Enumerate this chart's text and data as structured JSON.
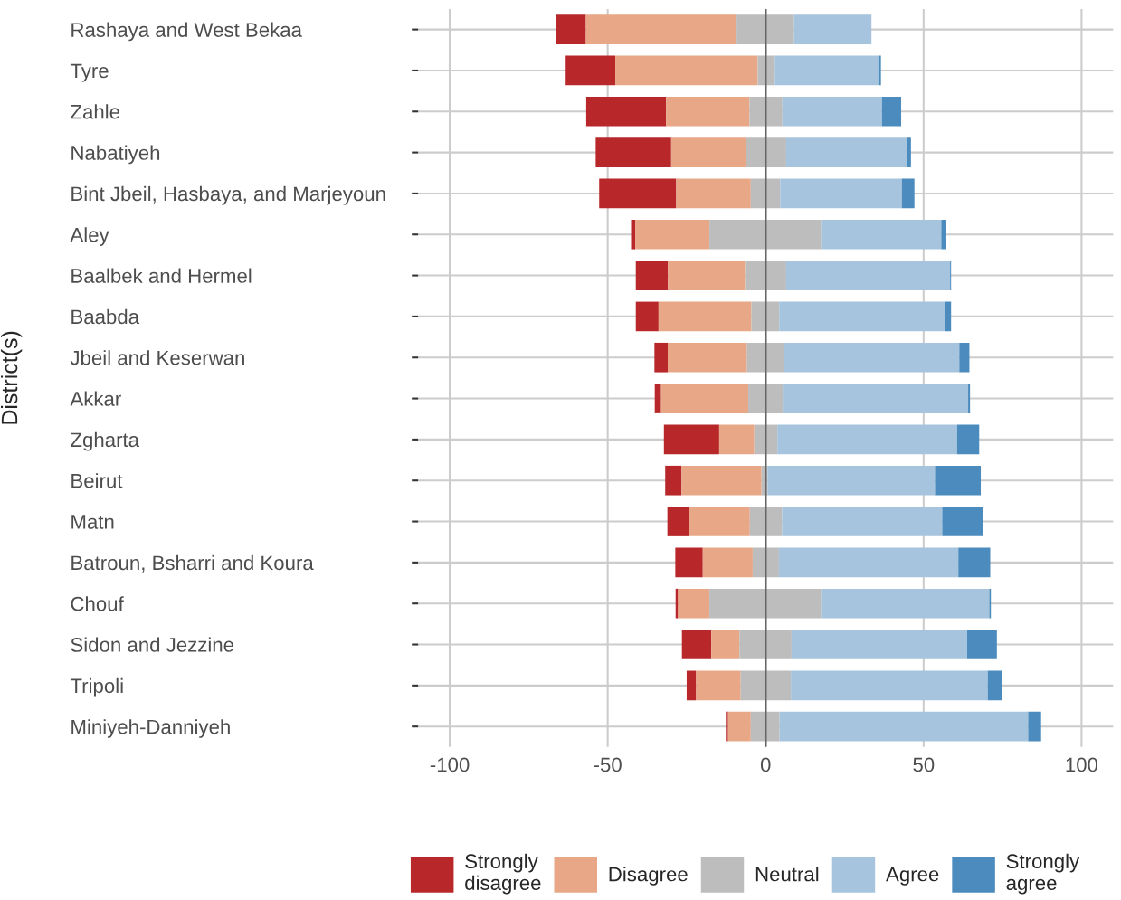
{
  "chart_data": {
    "type": "bar",
    "orientation": "horizontal",
    "ylabel": "District(s)",
    "categories": [
      "Rashaya and West Bekaa",
      "Tyre",
      "Zahle",
      "Nabatiyeh",
      "Bint Jbeil, Hasbaya, and Marjeyoun",
      "Aley",
      "Baalbek and Hermel",
      "Baabda",
      "Jbeil and Keserwan",
      "Akkar",
      "Zgharta",
      "Beirut",
      "Matn",
      "Batroun, Bsharri and Koura",
      "Chouf",
      "Sidon and Jezzine",
      "Tripoli",
      "Miniyeh-Danniyeh"
    ],
    "series": [
      {
        "name": "Strongly\ndisagree",
        "color": "#b8272a",
        "base": [
          -66.3,
          -63.3,
          -56.8,
          -53.8,
          -52.7,
          -42.6,
          -41.1,
          -41.1,
          -35.2,
          -35.1,
          -32.2,
          -31.8,
          -31.1,
          -28.6,
          -28.5,
          -26.5,
          -25.0,
          -12.6
        ],
        "values": [
          9.4,
          15.7,
          25.3,
          23.9,
          24.4,
          1.3,
          10.2,
          7.2,
          4.2,
          2.0,
          17.5,
          5.2,
          6.7,
          8.7,
          0.8,
          9.3,
          3.0,
          0.7
        ]
      },
      {
        "name": "Disagree",
        "color": "#e8a787",
        "base": [
          -56.9,
          -47.6,
          -31.5,
          -29.9,
          -28.3,
          -41.3,
          -30.9,
          -33.9,
          -31.0,
          -33.1,
          -14.7,
          -26.6,
          -24.4,
          -19.9,
          -27.7,
          -17.2,
          -22.0,
          -11.9
        ],
        "values": [
          47.7,
          45.1,
          26.4,
          23.6,
          23.6,
          23.5,
          24.4,
          29.4,
          25.1,
          27.6,
          11.1,
          25.3,
          19.4,
          15.8,
          9.9,
          8.9,
          14.1,
          7.2
        ]
      },
      {
        "name": "Neutral",
        "color": "#bdbdbd",
        "base": [
          -9.2,
          -2.5,
          -5.1,
          -6.3,
          -4.7,
          -17.8,
          -6.5,
          -4.5,
          -5.9,
          -5.5,
          -3.6,
          -1.3,
          -5.0,
          -4.1,
          -17.8,
          -8.3,
          -7.9,
          -4.7
        ],
        "values": [
          18.2,
          5.4,
          10.4,
          12.8,
          9.3,
          35.4,
          13.0,
          8.8,
          11.8,
          10.9,
          7.3,
          1.9,
          10.2,
          8.3,
          35.4,
          16.5,
          15.9,
          9.1
        ]
      },
      {
        "name": "Agree",
        "color": "#a6c4dd",
        "base": [
          9.0,
          2.9,
          5.3,
          6.5,
          4.6,
          17.6,
          6.5,
          4.3,
          5.9,
          5.4,
          3.7,
          0.6,
          5.2,
          4.2,
          17.6,
          8.2,
          8.0,
          4.4
        ],
        "values": [
          24.5,
          32.8,
          31.5,
          38.2,
          38.5,
          38.0,
          51.9,
          52.4,
          55.4,
          58.7,
          56.9,
          53.0,
          50.7,
          56.8,
          53.2,
          55.6,
          62.3,
          78.7
        ]
      },
      {
        "name": "Strongly\nagree",
        "color": "#4b8bbd",
        "base": [
          null,
          35.7,
          36.8,
          44.7,
          43.1,
          55.6,
          58.4,
          56.7,
          61.3,
          64.1,
          60.6,
          53.6,
          55.9,
          61.0,
          70.8,
          63.8,
          70.3,
          83.1
        ],
        "values": [
          null,
          0.8,
          6.1,
          1.3,
          4.0,
          1.6,
          0.3,
          2.0,
          3.2,
          0.6,
          7.0,
          14.5,
          12.9,
          10.1,
          0.5,
          9.4,
          4.6,
          4.1
        ]
      }
    ],
    "xlim": [
      -110,
      110
    ],
    "xticks": [
      -100,
      -50,
      0,
      50,
      100
    ],
    "ref_lines": [
      {
        "axis": "x",
        "value": 0,
        "color": "#666666"
      }
    ],
    "grid": true,
    "legend": "bottom"
  }
}
